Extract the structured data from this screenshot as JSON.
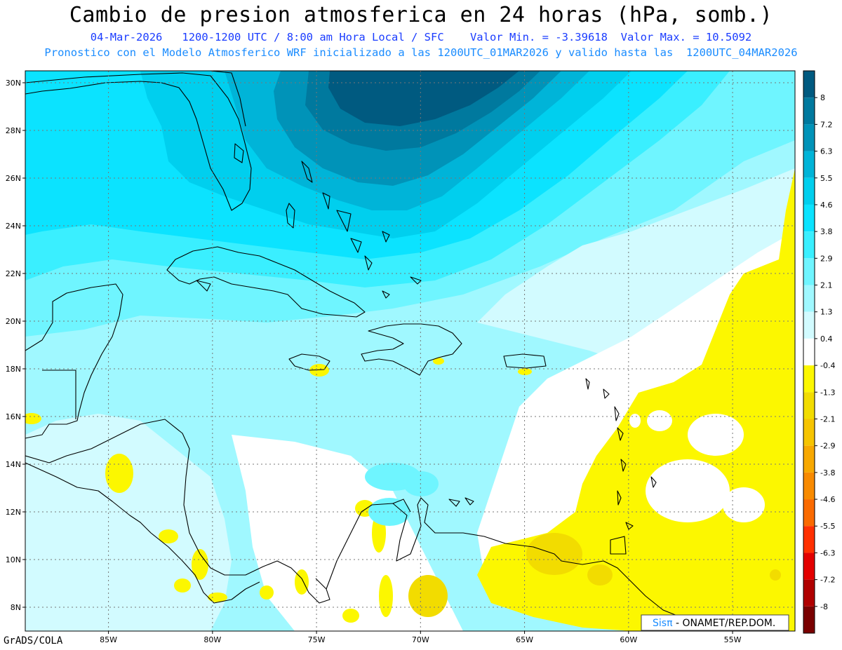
{
  "title": "Cambio de presion atmosferica en 24 horas (hPa, somb.)",
  "subtitle_line1": "04-Mar-2026   1200-1200 UTC / 8:00 am Hora Local / SFC    Valor Min. = -3.39618  Valor Max. = 10.5092",
  "subtitle_line2": "Pronostico con el Modelo Atmosferico WRF inicializado a las 1200UTC_01MAR2026 y valido hasta las  1200UTC_04MAR2026",
  "credit": {
    "brand": "Sisπ",
    "rest": " - ONAMET/REP.DOM."
  },
  "footer": "GrADS/COLA",
  "map": {
    "lon_range": [
      -89,
      -52
    ],
    "lat_range": [
      7,
      30.5
    ],
    "lat_ticks": [
      {
        "v": 30,
        "label": "30N"
      },
      {
        "v": 28,
        "label": "28N"
      },
      {
        "v": 26,
        "label": "26N"
      },
      {
        "v": 24,
        "label": "24N"
      },
      {
        "v": 22,
        "label": "22N"
      },
      {
        "v": 20,
        "label": "20N"
      },
      {
        "v": 18,
        "label": "18N"
      },
      {
        "v": 16,
        "label": "16N"
      },
      {
        "v": 14,
        "label": "14N"
      },
      {
        "v": 12,
        "label": "12N"
      },
      {
        "v": 10,
        "label": "10N"
      },
      {
        "v": 8,
        "label": "8N"
      }
    ],
    "lon_ticks": [
      {
        "v": -85,
        "label": "85W"
      },
      {
        "v": -80,
        "label": "80W"
      },
      {
        "v": -75,
        "label": "75W"
      },
      {
        "v": -70,
        "label": "70W"
      },
      {
        "v": -65,
        "label": "65W"
      },
      {
        "v": -60,
        "label": "60W"
      },
      {
        "v": -55,
        "label": "55W"
      }
    ]
  },
  "colorbar": {
    "levels": [
      "8",
      "7.2",
      "6.3",
      "5.5",
      "4.6",
      "3.8",
      "2.9",
      "2.1",
      "1.3",
      "0.4",
      "-0.4",
      "-1.3",
      "-2.1",
      "-2.9",
      "-3.8",
      "-4.6",
      "-5.5",
      "-6.3",
      "-7.2",
      "-8"
    ],
    "colors": [
      "#005a80",
      "#00799e",
      "#0093b8",
      "#00b4d8",
      "#00cfee",
      "#0be3ff",
      "#3aefff",
      "#6ff5ff",
      "#a0f8ff",
      "#d2fbff",
      "#ffffff",
      "#fcf700",
      "#f2dc00",
      "#f6c400",
      "#f7a800",
      "#f88a00",
      "#fa6a00",
      "#ff3000",
      "#e30000",
      "#b00000",
      "#7a0000"
    ]
  }
}
